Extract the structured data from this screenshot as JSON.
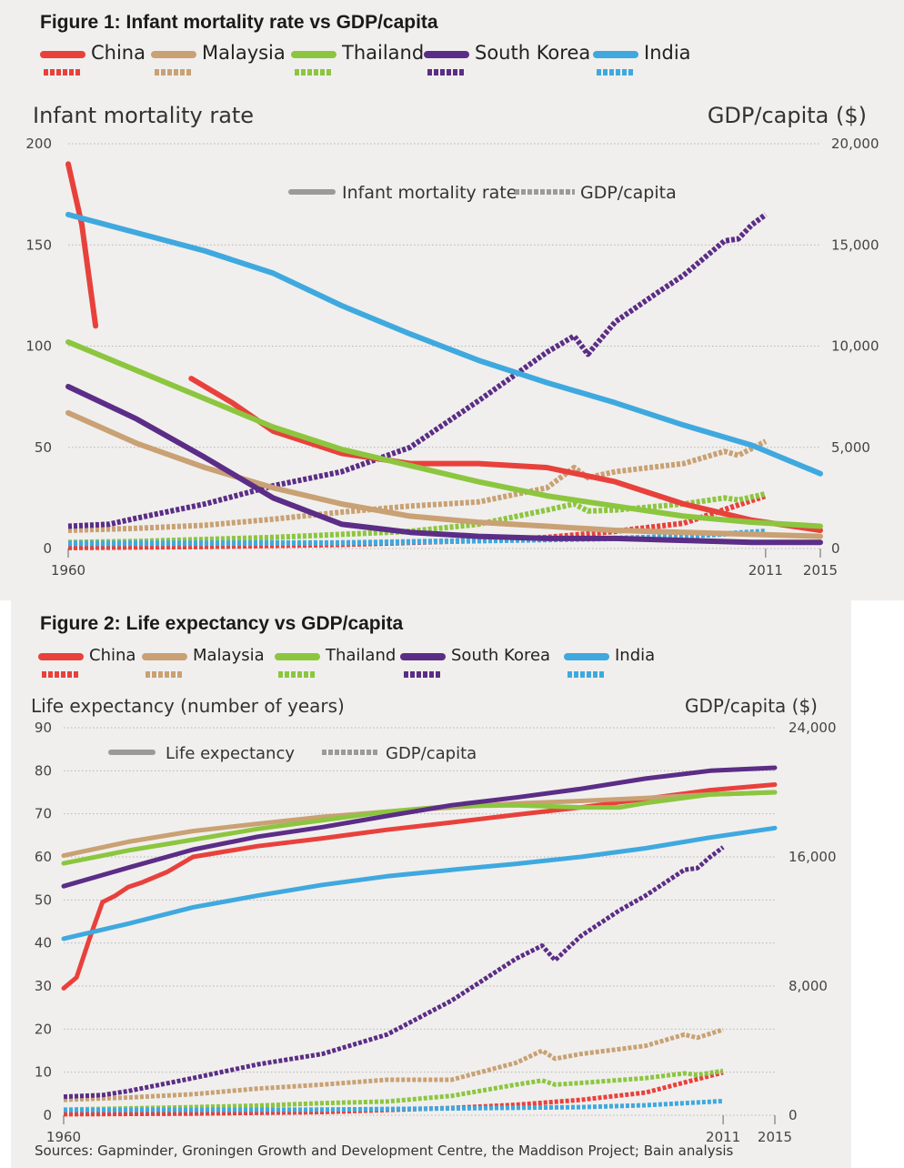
{
  "colors": {
    "China": "#e8413c",
    "Malaysia": "#c9a174",
    "Thailand": "#8cc63f",
    "South Korea": "#5b2d86",
    "India": "#3fa9df",
    "key_gray": "#9a9a9a",
    "grid": "#b5b5b5",
    "panel_bg": "#f0efed"
  },
  "legend": [
    "China",
    "Malaysia",
    "Thailand",
    "South Korea",
    "India"
  ],
  "figure1": {
    "title": "Figure 1: Infant mortality rate vs GDP/capita",
    "key_solid_label": "Infant mortality rate",
    "key_dashed_label": "GDP/capita"
  },
  "figure2": {
    "title": "Figure 2: Life expectancy vs GDP/capita",
    "key_solid_label": "Life expectancy",
    "key_dashed_label": "GDP/capita"
  },
  "source": "Sources: Gapminder, Groningen Growth and Development Centre, the Maddison Project; Bain analysis",
  "chart_data": [
    {
      "type": "line",
      "title": "Figure 1: Infant mortality rate vs GDP/capita",
      "ylabel": "Infant mortality rate",
      "y2label": "GDP/capita ($)",
      "ylim": [
        0,
        200
      ],
      "y2lim": [
        0,
        20000
      ],
      "xlim": [
        1960,
        2015
      ],
      "yticks": [
        0,
        50,
        100,
        150,
        200
      ],
      "y2ticks": [
        "0",
        "5,000",
        "10,000",
        "15,000",
        "20,000"
      ],
      "xticks": [
        1960,
        2011,
        2015
      ],
      "grid": true,
      "series": [
        {
          "name": "China",
          "kind": "Infant mortality rate",
          "axis": "left",
          "x": [
            1960,
            1961,
            1962,
            1969,
            1972,
            1975,
            1980,
            1985,
            1990,
            1995,
            2000,
            2005,
            2010,
            2015
          ],
          "y": [
            190,
            160,
            110,
            84,
            72,
            58,
            47,
            42,
            42,
            40,
            33,
            22,
            14,
            9
          ],
          "breaks": [
            1963
          ]
        },
        {
          "name": "Malaysia",
          "kind": "Infant mortality rate",
          "axis": "left",
          "x": [
            1960,
            1965,
            1970,
            1975,
            1980,
            1985,
            1990,
            1995,
            2000,
            2005,
            2010,
            2015
          ],
          "y": [
            67,
            52,
            40,
            30,
            22,
            16,
            13,
            11,
            9,
            8,
            7,
            6
          ]
        },
        {
          "name": "Thailand",
          "kind": "Infant mortality rate",
          "axis": "left",
          "x": [
            1960,
            1965,
            1970,
            1975,
            1980,
            1985,
            1990,
            1995,
            2000,
            2005,
            2010,
            2015
          ],
          "y": [
            102,
            88,
            74,
            60,
            49,
            41,
            33,
            26,
            21,
            16,
            13,
            11
          ]
        },
        {
          "name": "South Korea",
          "kind": "Infant mortality rate",
          "axis": "left",
          "x": [
            1960,
            1965,
            1970,
            1975,
            1980,
            1985,
            1990,
            1995,
            2000,
            2005,
            2010,
            2015
          ],
          "y": [
            80,
            64,
            45,
            25,
            12,
            8,
            6,
            5,
            5,
            4,
            3,
            3
          ]
        },
        {
          "name": "India",
          "kind": "Infant mortality rate",
          "axis": "left",
          "x": [
            1960,
            1965,
            1970,
            1975,
            1980,
            1985,
            1990,
            1995,
            2000,
            2005,
            2010,
            2015
          ],
          "y": [
            165,
            156,
            147,
            136,
            120,
            106,
            93,
            82,
            72,
            61,
            51,
            37
          ]
        },
        {
          "name": "China",
          "kind": "GDP/capita",
          "axis": "right",
          "x": [
            1960,
            1970,
            1980,
            1990,
            1995,
            2000,
            2005,
            2011
          ],
          "y": [
            50,
            100,
            200,
            400,
            550,
            850,
            1250,
            2600
          ]
        },
        {
          "name": "Malaysia",
          "kind": "GDP/capita",
          "axis": "right",
          "x": [
            1960,
            1965,
            1970,
            1975,
            1980,
            1985,
            1990,
            1995,
            1997,
            1998,
            2000,
            2005,
            2008,
            2009,
            2011
          ],
          "y": [
            900,
            1000,
            1150,
            1450,
            1800,
            2100,
            2300,
            3000,
            4000,
            3500,
            3800,
            4200,
            4800,
            4600,
            5300
          ]
        },
        {
          "name": "Thailand",
          "kind": "GDP/capita",
          "axis": "right",
          "x": [
            1960,
            1965,
            1970,
            1975,
            1980,
            1985,
            1990,
            1995,
            1997,
            1998,
            2000,
            2005,
            2008,
            2009,
            2011
          ],
          "y": [
            300,
            350,
            450,
            550,
            700,
            850,
            1200,
            1900,
            2200,
            1850,
            1900,
            2200,
            2500,
            2400,
            2700
          ]
        },
        {
          "name": "South Korea",
          "kind": "GDP/capita",
          "axis": "right",
          "x": [
            1960,
            1963,
            1965,
            1970,
            1975,
            1980,
            1985,
            1990,
            1995,
            1997,
            1998,
            2000,
            2003,
            2005,
            2008,
            2009,
            2010,
            2011
          ],
          "y": [
            1100,
            1200,
            1500,
            2200,
            3100,
            3800,
            5000,
            7300,
            9700,
            10500,
            9600,
            11200,
            12600,
            13500,
            15200,
            15300,
            16000,
            16500
          ]
        },
        {
          "name": "India",
          "kind": "GDP/capita",
          "axis": "right",
          "x": [
            1960,
            1970,
            1980,
            1990,
            2000,
            2005,
            2011
          ],
          "y": [
            250,
            260,
            280,
            380,
            500,
            600,
            850
          ]
        }
      ]
    },
    {
      "type": "line",
      "title": "Figure 2: Life expectancy vs GDP/capita",
      "ylabel": "Life expectancy (number of years)",
      "y2label": "GDP/capita ($)",
      "ylim": [
        0,
        90
      ],
      "y2lim": [
        0,
        24000
      ],
      "xlim": [
        1960,
        2015
      ],
      "yticks": [
        0,
        10,
        20,
        30,
        40,
        50,
        60,
        70,
        80,
        90
      ],
      "y2ticks": [
        "0",
        "8,000",
        "16,000",
        "24,000"
      ],
      "xticks": [
        1960,
        2011,
        2015
      ],
      "grid": true,
      "series": [
        {
          "name": "China",
          "kind": "Life expectancy",
          "axis": "left",
          "x": [
            1960,
            1961,
            1962,
            1963,
            1964,
            1965,
            1966,
            1968,
            1970,
            1973,
            1975,
            1980,
            1985,
            1990,
            1995,
            2000,
            2005,
            2010,
            2015
          ],
          "y": [
            29.5,
            32,
            41,
            49.5,
            51,
            53,
            54,
            56.5,
            60,
            61.5,
            62.5,
            64.3,
            66.3,
            68,
            69.8,
            71.5,
            73.5,
            75.5,
            76.8
          ]
        },
        {
          "name": "Malaysia",
          "kind": "Life expectancy",
          "axis": "left",
          "x": [
            1960,
            1965,
            1970,
            1975,
            1980,
            1985,
            1990,
            1995,
            2000,
            2005,
            2010,
            2015
          ],
          "y": [
            60.3,
            63.5,
            66,
            67.7,
            69.3,
            70.5,
            71.5,
            72.4,
            73,
            73.7,
            74.5,
            75
          ]
        },
        {
          "name": "Thailand",
          "kind": "Life expectancy",
          "axis": "left",
          "x": [
            1960,
            1965,
            1970,
            1975,
            1980,
            1985,
            1990,
            1995,
            2000,
            2003,
            2005,
            2010,
            2015
          ],
          "y": [
            58.5,
            61.5,
            64,
            66.5,
            68.5,
            70.5,
            71.8,
            72,
            71.5,
            71.5,
            72.5,
            74.5,
            75
          ]
        },
        {
          "name": "South Korea",
          "kind": "Life expectancy",
          "axis": "left",
          "x": [
            1960,
            1965,
            1970,
            1975,
            1980,
            1985,
            1990,
            1995,
            2000,
            2005,
            2010,
            2015
          ],
          "y": [
            53.2,
            57.5,
            61.7,
            64.7,
            66.9,
            69.5,
            72,
            73.8,
            75.8,
            78.2,
            80,
            80.7
          ]
        },
        {
          "name": "India",
          "kind": "Life expectancy",
          "axis": "left",
          "x": [
            1960,
            1965,
            1970,
            1975,
            1980,
            1985,
            1990,
            1995,
            2000,
            2005,
            2010,
            2015
          ],
          "y": [
            41,
            44.5,
            48.3,
            51,
            53.5,
            55.5,
            57,
            58.4,
            60,
            62,
            64.5,
            66.7
          ]
        },
        {
          "name": "China",
          "kind": "GDP/capita",
          "axis": "right",
          "x": [
            1960,
            1970,
            1980,
            1990,
            1995,
            2000,
            2005,
            2011
          ],
          "y": [
            60,
            100,
            200,
            450,
            650,
            950,
            1400,
            2650
          ]
        },
        {
          "name": "Malaysia",
          "kind": "GDP/capita",
          "axis": "right",
          "x": [
            1960,
            1965,
            1970,
            1975,
            1980,
            1985,
            1990,
            1995,
            1997,
            1998,
            2000,
            2005,
            2008,
            2009,
            2011
          ],
          "y": [
            950,
            1100,
            1300,
            1650,
            1900,
            2200,
            2200,
            3250,
            4000,
            3500,
            3800,
            4300,
            5000,
            4800,
            5300
          ]
        },
        {
          "name": "Thailand",
          "kind": "GDP/capita",
          "axis": "right",
          "x": [
            1960,
            1965,
            1970,
            1975,
            1980,
            1985,
            1990,
            1995,
            1997,
            1998,
            2000,
            2005,
            2008,
            2009,
            2011
          ],
          "y": [
            350,
            420,
            500,
            600,
            750,
            850,
            1200,
            1900,
            2150,
            1900,
            2000,
            2300,
            2600,
            2500,
            2750
          ]
        },
        {
          "name": "South Korea",
          "kind": "GDP/capita",
          "axis": "right",
          "x": [
            1960,
            1963,
            1965,
            1970,
            1975,
            1980,
            1985,
            1990,
            1995,
            1997,
            1998,
            2000,
            2003,
            2005,
            2008,
            2009,
            2010,
            2011
          ],
          "y": [
            1150,
            1250,
            1500,
            2300,
            3150,
            3800,
            5000,
            7100,
            9700,
            10500,
            9600,
            11100,
            12700,
            13600,
            15200,
            15300,
            16000,
            16600
          ]
        },
        {
          "name": "India",
          "kind": "GDP/capita",
          "axis": "right",
          "x": [
            1960,
            1970,
            1980,
            1990,
            2000,
            2005,
            2011
          ],
          "y": [
            320,
            330,
            350,
            420,
            500,
            620,
            880
          ]
        }
      ]
    }
  ]
}
